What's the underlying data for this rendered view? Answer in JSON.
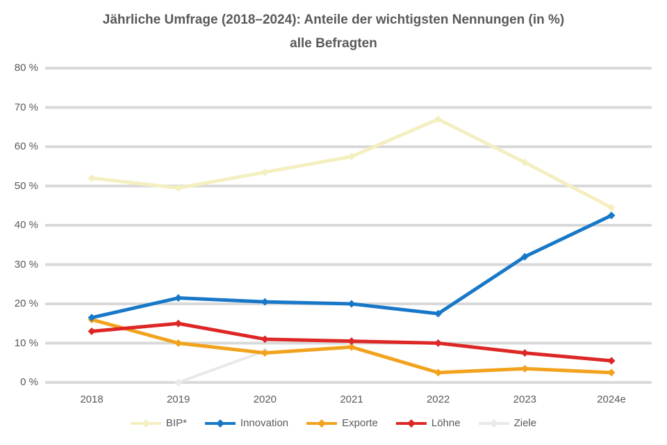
{
  "title": {
    "line1": "Jährliche Umfrage (2018–2024): Anteile der wichtigsten Nennungen (in %)",
    "line2": "alle Befragten"
  },
  "chart_data": {
    "type": "line",
    "categories": [
      "2018",
      "2019",
      "2020",
      "2021",
      "2022",
      "2023",
      "2024e"
    ],
    "series": [
      {
        "name": "BIP*",
        "color": "#f4efc1",
        "values": [
          52,
          49.5,
          53.5,
          57.5,
          67,
          56,
          44.5
        ]
      },
      {
        "name": "Innovation",
        "color": "#1878c8",
        "values": [
          16.5,
          21.5,
          20.5,
          20,
          17.5,
          32,
          42.5
        ]
      },
      {
        "name": "Exporte",
        "color": "#f2a21c",
        "values": [
          16,
          10,
          7.5,
          9,
          2.5,
          3.5,
          2.5
        ]
      },
      {
        "name": "Löhne",
        "color": "#dd2726",
        "values": [
          13,
          15,
          11,
          10.5,
          10,
          7.5,
          5.5
        ]
      },
      {
        "name": "Ziele",
        "color": "#e9e9e9",
        "values": [
          null,
          0,
          8,
          null,
          null,
          null,
          null
        ]
      }
    ],
    "y_tick_labels": [
      "80 %",
      "70 %",
      "60 %",
      "50 %",
      "40 %",
      "30 %",
      "20 %",
      "10 %",
      "0 %"
    ],
    "ylim": [
      0,
      80
    ],
    "xlabel": "",
    "ylabel": "",
    "grid": true,
    "legend_position": "bottom"
  },
  "colors": {
    "background": "#ffffff",
    "gridline": "#d9d9d9",
    "text": "#595959"
  }
}
